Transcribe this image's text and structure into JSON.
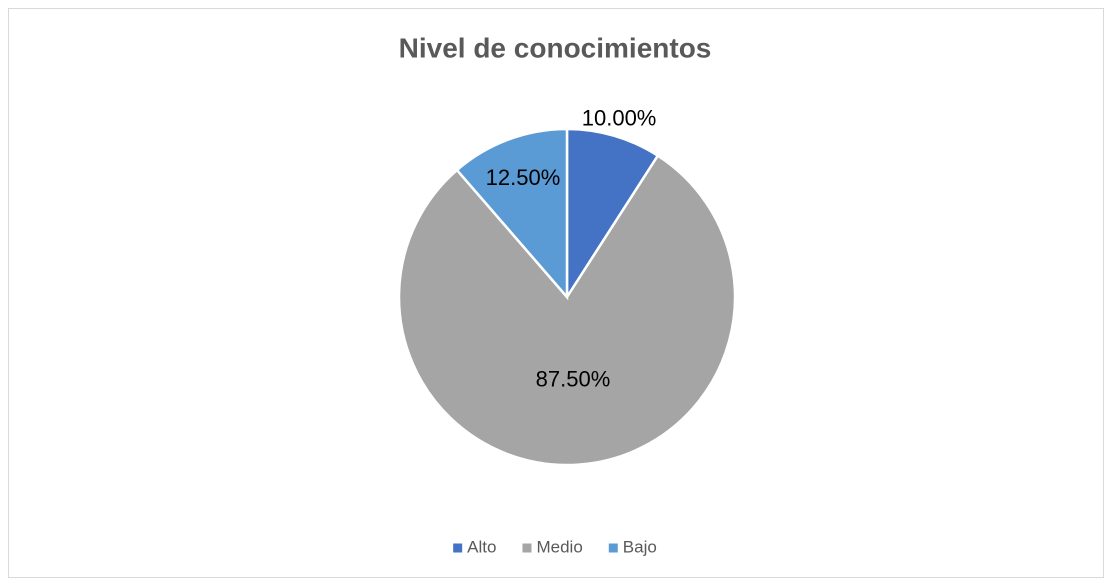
{
  "chart_data": {
    "type": "pie",
    "title": "Nivel de conocimientos",
    "categories": [
      "Alto",
      "Medio",
      "Bajo"
    ],
    "values": [
      10,
      87.5,
      12.5
    ],
    "value_labels": [
      "10.00%",
      "87.50%",
      "12.50%"
    ],
    "colors": [
      "#4472c4",
      "#a5a5a5",
      "#5b9bd5"
    ],
    "legend": "bottom"
  }
}
